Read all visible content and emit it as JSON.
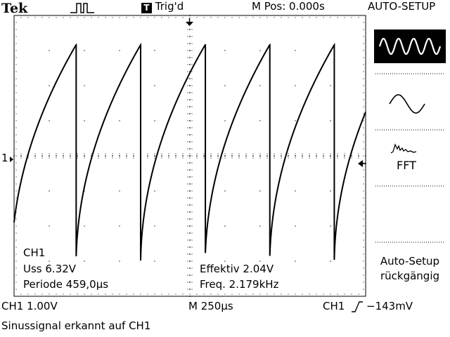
{
  "header": {
    "brand": "Tek",
    "trigger_state_icon": "T",
    "trigger_state": "Trig'd",
    "horizontal_position": "M Pos: 0.000s",
    "menu_title": "AUTO-SETUP"
  },
  "measurements": {
    "channel": "CH1",
    "peak_to_peak": "Uss 6.32V",
    "period": "Periode 459,0µs",
    "rms": "Effektiv 2.04V",
    "frequency": "Freq. 2.179kHz"
  },
  "side_menu": {
    "options": [
      {
        "name": "multi-cycle-sine",
        "icon": "multi-cycle-sine-icon",
        "selected": true
      },
      {
        "name": "single-cycle-sine",
        "icon": "single-cycle-sine-icon",
        "selected": false
      },
      {
        "name": "fft",
        "icon": "fft-icon",
        "label": "FFT",
        "selected": false
      }
    ],
    "undo_label_line1": "Auto-Setup",
    "undo_label_line2": "rückgängig"
  },
  "status": {
    "ch1_scale": "CH1  1.00V",
    "timebase": "M 250µs",
    "trigger_source": "CH1",
    "trigger_level": "−143mV",
    "message": "Sinussignal erkannt auf CH1"
  },
  "markers": {
    "channel_ground": "1"
  },
  "colors": {
    "background": "#ffffff",
    "trace": "#000000",
    "grid": "#000000",
    "selected_menu_bg": "#000000"
  },
  "chart_data": {
    "type": "line",
    "title": "",
    "xlabel": "",
    "ylabel": "",
    "grid": true,
    "divisions": {
      "x": 10,
      "y": 8
    },
    "volts_per_division": 1.0,
    "seconds_per_division": 0.00025,
    "series": [
      {
        "waveform": "sawtooth (concave rising ramp, vertical fall)",
        "period_s": 0.000459,
        "peak_to_peak_V": 6.32,
        "rms_V": 2.04,
        "frequency_Hz": 2179
      }
    ]
  }
}
